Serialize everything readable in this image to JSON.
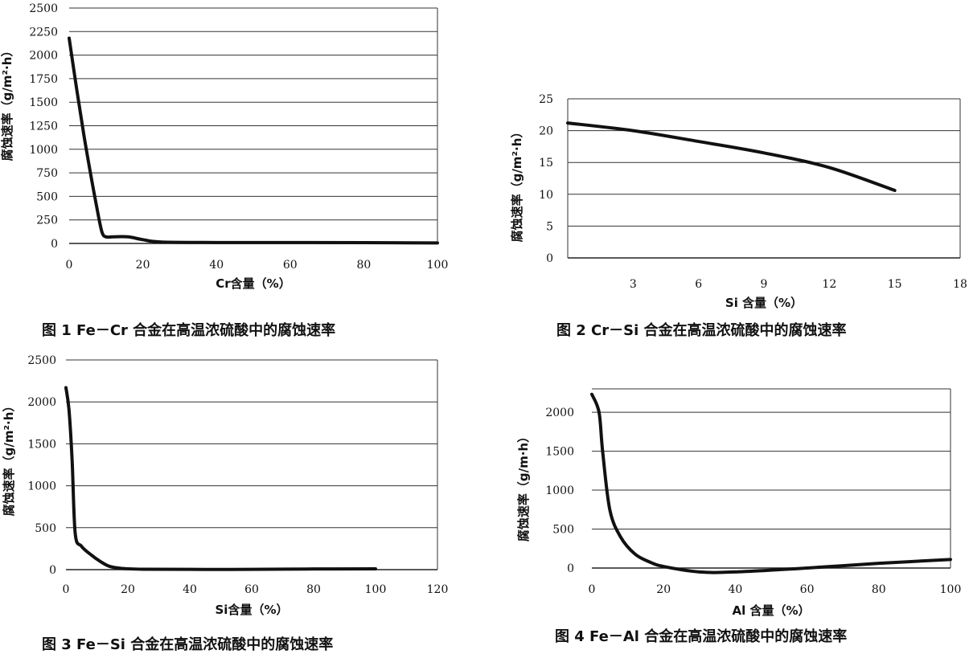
{
  "chart_data": [
    {
      "type": "line",
      "caption": "图 1   Fe－Cr 合金在高温浓硫酸中的腐蚀速率",
      "xlabel": "Cr含量（%）",
      "ylabel": "腐蚀速率（g/m²·h）",
      "xlim": [
        0,
        100
      ],
      "ylim": [
        0,
        2500
      ],
      "xticks": [
        "0",
        "20",
        "40",
        "60",
        "80",
        "100"
      ],
      "yticks": [
        "0",
        "250",
        "500",
        "750",
        "1000",
        "1250",
        "1500",
        "1750",
        "2000",
        "2250",
        "2500"
      ],
      "grid": true,
      "x": [
        0,
        2,
        4,
        6,
        8,
        9,
        10,
        12,
        16,
        20,
        25,
        40,
        60,
        80,
        100
      ],
      "y": [
        2180,
        1650,
        1150,
        700,
        280,
        110,
        70,
        70,
        70,
        40,
        15,
        10,
        10,
        8,
        5
      ]
    },
    {
      "type": "line",
      "caption": "图 2   Cr－Si 合金在高温浓硫酸中的腐蚀速率",
      "xlabel": "Si 含量（%）",
      "ylabel": "腐蚀速率（g/m²·h）",
      "xlim": [
        0,
        18
      ],
      "ylim": [
        0,
        25
      ],
      "xticks": [
        "3",
        "6",
        "9",
        "12",
        "15",
        "18"
      ],
      "yticks": [
        "0",
        "5",
        "10",
        "15",
        "20",
        "25"
      ],
      "grid": true,
      "x": [
        0,
        3,
        6,
        9,
        12,
        15
      ],
      "y": [
        21.2,
        20.0,
        18.3,
        16.5,
        14.2,
        10.6
      ]
    },
    {
      "type": "line",
      "caption": "图 3   Fe－Si 合金在高温浓硫酸中的腐蚀速率",
      "xlabel": "Si含量（%）",
      "ylabel": "腐蚀速率（g/m²·h）",
      "xlim": [
        0,
        120
      ],
      "ylim": [
        0,
        2500
      ],
      "xticks": [
        "0",
        "20",
        "40",
        "60",
        "80",
        "100",
        "120"
      ],
      "yticks": [
        "0",
        "500",
        "1000",
        "1500",
        "2000",
        "2500"
      ],
      "grid": true,
      "x": [
        0,
        1,
        2,
        3,
        5,
        8,
        11,
        14,
        18,
        25,
        40,
        60,
        80,
        100
      ],
      "y": [
        2170,
        1900,
        1300,
        430,
        280,
        180,
        100,
        40,
        15,
        5,
        3,
        3,
        8,
        10
      ]
    },
    {
      "type": "line",
      "caption": "图 4   Fe－Al 合金在高温浓硫酸中的腐蚀速率",
      "xlabel": "Al 含量（%）",
      "ylabel": "腐蚀速率（g/m·h）",
      "xlim": [
        0,
        100
      ],
      "ylim": [
        0,
        2300
      ],
      "xticks": [
        "0",
        "20",
        "40",
        "60",
        "80",
        "100"
      ],
      "yticks": [
        "0",
        "500",
        "1000",
        "1500",
        "2000"
      ],
      "grid": true,
      "x": [
        0,
        2,
        3,
        5,
        8,
        12,
        16,
        20,
        30,
        40,
        60,
        80,
        100
      ],
      "y": [
        2230,
        2000,
        1500,
        750,
        400,
        180,
        80,
        20,
        -50,
        -50,
        0,
        60,
        110
      ]
    }
  ]
}
